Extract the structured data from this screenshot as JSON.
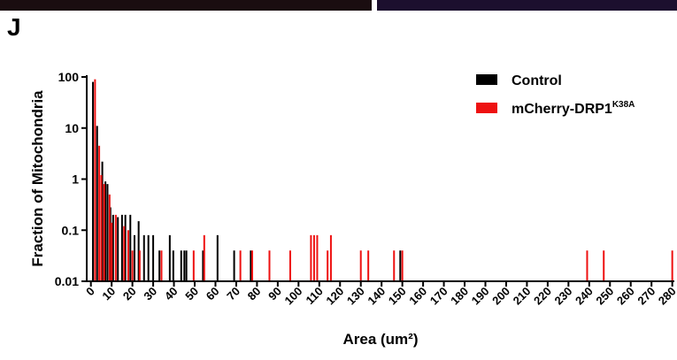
{
  "chart_data": {
    "type": "bar",
    "panel_label": "J",
    "x_label": "Area (um²)",
    "y_label": "Fraction of Mitochondria",
    "log_y": true,
    "ylim": [
      0.01,
      100
    ],
    "yticks": [
      0.01,
      0.1,
      1,
      10,
      100
    ],
    "xlim": [
      -2,
      281
    ],
    "xticks": [
      0,
      10,
      20,
      30,
      40,
      50,
      60,
      70,
      80,
      90,
      100,
      110,
      120,
      130,
      140,
      150,
      160,
      170,
      180,
      190,
      200,
      210,
      220,
      230,
      240,
      250,
      260,
      270,
      280
    ],
    "legend": "upper right",
    "series": [
      {
        "name": "Control",
        "color": "#000000",
        "x": [
          1,
          3,
          5.5,
          7,
          8,
          9.4,
          10.7,
          13,
          15,
          16.6,
          19,
          21,
          23,
          25.6,
          27.7,
          30,
          33,
          38,
          39.7,
          43.5,
          45,
          46,
          54,
          61,
          69,
          77,
          149
        ],
        "values": [
          80,
          11,
          2.2,
          0.9,
          0.8,
          0.28,
          0.2,
          0.18,
          0.2,
          0.2,
          0.2,
          0.08,
          0.15,
          0.08,
          0.08,
          0.08,
          0.04,
          0.08,
          0.04,
          0.04,
          0.04,
          0.04,
          0.04,
          0.08,
          0.04,
          0.04,
          0.04
        ]
      },
      {
        "name": "mCherry-DRP1",
        "name_sup": "K38A",
        "color": "#ee1111",
        "x": [
          2,
          4,
          5,
          6.4,
          9,
          10,
          12,
          16,
          18,
          20,
          23.5,
          34,
          49.5,
          54.6,
          72,
          77.7,
          86,
          96,
          106,
          107.5,
          109,
          114,
          115.6,
          130,
          133.6,
          146,
          150,
          239,
          247,
          280
        ],
        "values": [
          90,
          4.5,
          1.2,
          0.8,
          0.5,
          0.14,
          0.2,
          0.12,
          0.1,
          0.04,
          0.04,
          0.04,
          0.04,
          0.08,
          0.04,
          0.04,
          0.04,
          0.04,
          0.08,
          0.08,
          0.08,
          0.04,
          0.08,
          0.04,
          0.04,
          0.04,
          0.04,
          0.04,
          0.04,
          0.04
        ]
      }
    ]
  }
}
